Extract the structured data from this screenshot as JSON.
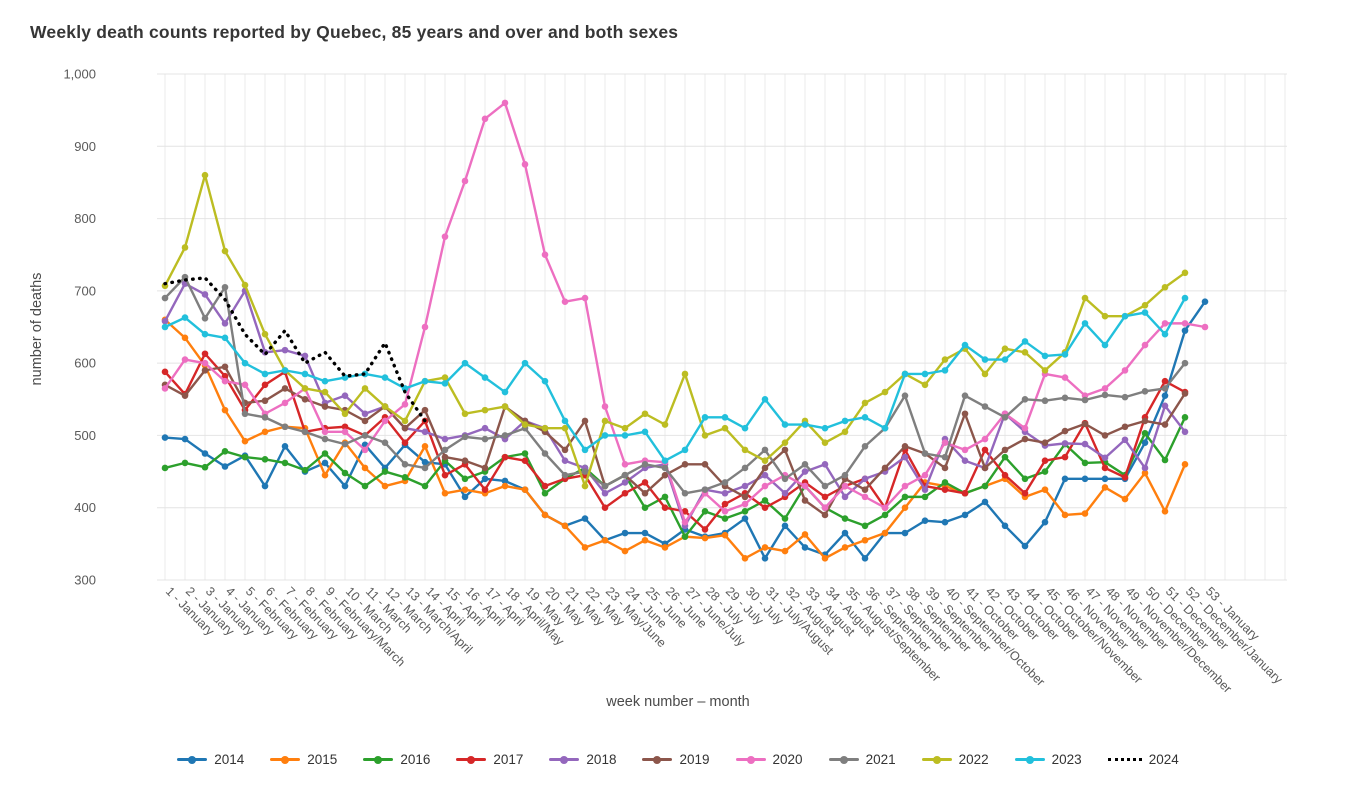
{
  "title": "Weekly death counts reported by Quebec, 85 years and over and both sexes",
  "y_axis": {
    "title": "number of deaths",
    "tick_labels": [
      "1,000",
      "900",
      "800",
      "700",
      "600",
      "500",
      "400",
      "300"
    ],
    "tick_values": [
      1000,
      900,
      800,
      700,
      600,
      500,
      400,
      300
    ]
  },
  "x_axis": {
    "title": "week number – month"
  },
  "chart_data": {
    "type": "line",
    "title": "Weekly death counts reported by Quebec, 85 years and over and both sexes",
    "xlabel": "week number – month",
    "ylabel": "number of deaths",
    "ylim": [
      300,
      1000
    ],
    "grid": true,
    "legend_position": "bottom",
    "categories": [
      "1 - January",
      "2 - January",
      "3 - January",
      "4 - January",
      "5 - February",
      "6 - February",
      "7 - February",
      "8 - February",
      "9 - February/March",
      "10 - March",
      "11 - March",
      "12 - March",
      "13 - March/April",
      "14 - April",
      "15 - April",
      "16 - April",
      "17 - April",
      "18 - April/May",
      "19 - May",
      "20 - May",
      "21 - May",
      "22 - May",
      "23 - May/June",
      "24 - June",
      "25 - June",
      "26 - June",
      "27 - June/July",
      "28 - July",
      "29 - July",
      "30 - July",
      "31 - July/August",
      "32 - August",
      "33 - August",
      "34 - August",
      "35 - August/September",
      "36 - September",
      "37 - September",
      "38 - September",
      "39 - September",
      "40 - September/October",
      "41 - October",
      "42 - October",
      "43 - October",
      "44 - October",
      "45 - October/November",
      "46 - November",
      "47 - November",
      "48 - November",
      "49 - November/December",
      "50 - December",
      "51 - December",
      "52 - December/January",
      "53 - January"
    ],
    "series": [
      {
        "name": "2014",
        "color": "#1f77b4",
        "style": "solid",
        "values": [
          497,
          495,
          475,
          457,
          472,
          430,
          485,
          450,
          462,
          430,
          487,
          455,
          487,
          463,
          460,
          415,
          440,
          437,
          425,
          390,
          375,
          385,
          355,
          365,
          365,
          350,
          370,
          360,
          365,
          385,
          330,
          375,
          345,
          335,
          365,
          330,
          365,
          365,
          382,
          380,
          390,
          408,
          375,
          347,
          380,
          440,
          440,
          440,
          440,
          490,
          555,
          645,
          685
        ]
      },
      {
        "name": "2015",
        "color": "#ff7f0e",
        "style": "solid",
        "values": [
          660,
          635,
          597,
          535,
          492,
          505,
          512,
          510,
          445,
          490,
          455,
          430,
          437,
          485,
          420,
          425,
          420,
          430,
          425,
          390,
          375,
          345,
          355,
          340,
          355,
          345,
          360,
          358,
          362,
          330,
          345,
          340,
          363,
          330,
          345,
          355,
          365,
          400,
          435,
          430,
          420,
          430,
          440,
          415,
          425,
          390,
          392,
          428,
          412,
          448,
          395,
          460
        ]
      },
      {
        "name": "2016",
        "color": "#2ca02c",
        "style": "solid",
        "values": [
          455,
          462,
          456,
          478,
          470,
          467,
          462,
          452,
          475,
          448,
          430,
          450,
          442,
          430,
          465,
          440,
          450,
          470,
          475,
          420,
          440,
          455,
          430,
          445,
          400,
          415,
          360,
          395,
          385,
          395,
          410,
          385,
          430,
          400,
          385,
          375,
          390,
          415,
          415,
          435,
          420,
          430,
          470,
          440,
          450,
          488,
          462,
          463,
          445,
          503,
          466,
          525
        ]
      },
      {
        "name": "2017",
        "color": "#d62728",
        "style": "solid",
        "values": [
          588,
          557,
          613,
          582,
          535,
          570,
          588,
          505,
          510,
          512,
          500,
          525,
          490,
          520,
          445,
          460,
          425,
          470,
          465,
          430,
          440,
          445,
          400,
          420,
          435,
          400,
          395,
          370,
          405,
          420,
          400,
          415,
          435,
          415,
          430,
          440,
          400,
          480,
          430,
          425,
          420,
          480,
          445,
          420,
          465,
          470,
          517,
          455,
          442,
          525,
          575,
          560
        ]
      },
      {
        "name": "2018",
        "color": "#9467bd",
        "style": "solid",
        "values": [
          658,
          710,
          695,
          655,
          700,
          615,
          618,
          610,
          545,
          555,
          530,
          540,
          510,
          505,
          495,
          500,
          510,
          495,
          520,
          510,
          465,
          455,
          420,
          435,
          455,
          460,
          375,
          425,
          420,
          430,
          445,
          420,
          450,
          460,
          415,
          440,
          450,
          470,
          425,
          495,
          465,
          455,
          530,
          505,
          486,
          489,
          488,
          469,
          494,
          455,
          541,
          505
        ]
      },
      {
        "name": "2019",
        "color": "#8c564b",
        "style": "solid",
        "values": [
          570,
          555,
          590,
          595,
          545,
          548,
          565,
          550,
          540,
          535,
          520,
          540,
          510,
          535,
          470,
          465,
          455,
          540,
          520,
          505,
          480,
          520,
          430,
          445,
          420,
          445,
          460,
          460,
          430,
          415,
          455,
          480,
          410,
          390,
          440,
          425,
          455,
          485,
          475,
          455,
          530,
          455,
          480,
          495,
          490,
          506,
          516,
          500,
          512,
          520,
          515,
          558
        ]
      },
      {
        "name": "2020",
        "color": "#ed6fc1",
        "style": "solid",
        "values": [
          565,
          605,
          600,
          575,
          570,
          530,
          545,
          565,
          505,
          505,
          480,
          520,
          543,
          650,
          775,
          852,
          938,
          960,
          875,
          750,
          685,
          690,
          540,
          460,
          465,
          463,
          380,
          420,
          395,
          405,
          430,
          445,
          430,
          400,
          430,
          415,
          400,
          430,
          445,
          490,
          480,
          495,
          530,
          510,
          585,
          580,
          555,
          565,
          590,
          625,
          655,
          655,
          650
        ]
      },
      {
        "name": "2021",
        "color": "#7f7f7f",
        "style": "solid",
        "values": [
          690,
          719,
          662,
          705,
          530,
          525,
          512,
          505,
          495,
          488,
          500,
          490,
          460,
          455,
          480,
          498,
          495,
          500,
          510,
          475,
          445,
          450,
          430,
          445,
          460,
          455,
          420,
          425,
          435,
          455,
          480,
          440,
          460,
          430,
          445,
          485,
          510,
          555,
          475,
          470,
          555,
          540,
          525,
          550,
          548,
          552,
          549,
          556,
          553,
          561,
          565,
          600
        ]
      },
      {
        "name": "2022",
        "color": "#bcbd22",
        "style": "solid",
        "values": [
          707,
          760,
          860,
          755,
          708,
          640,
          590,
          565,
          560,
          530,
          565,
          540,
          520,
          575,
          580,
          530,
          535,
          540,
          515,
          510,
          510,
          430,
          520,
          510,
          530,
          515,
          585,
          500,
          510,
          480,
          465,
          490,
          520,
          490,
          505,
          545,
          560,
          585,
          570,
          605,
          620,
          585,
          620,
          615,
          590,
          615,
          690,
          665,
          665,
          680,
          705,
          725
        ]
      },
      {
        "name": "2023",
        "color": "#22c0dc",
        "style": "solid",
        "values": [
          650,
          663,
          640,
          635,
          600,
          585,
          590,
          585,
          575,
          580,
          585,
          580,
          565,
          575,
          572,
          600,
          580,
          560,
          600,
          575,
          520,
          480,
          500,
          500,
          505,
          465,
          480,
          525,
          525,
          510,
          550,
          515,
          515,
          510,
          520,
          525,
          510,
          585,
          585,
          590,
          625,
          605,
          605,
          630,
          610,
          612,
          655,
          625,
          665,
          670,
          640,
          690
        ]
      },
      {
        "name": "2024",
        "color": "#000000",
        "style": "dotted",
        "values": [
          710,
          715,
          718,
          688,
          640,
          612,
          645,
          600,
          615,
          582,
          585,
          628,
          560,
          520
        ]
      }
    ]
  }
}
